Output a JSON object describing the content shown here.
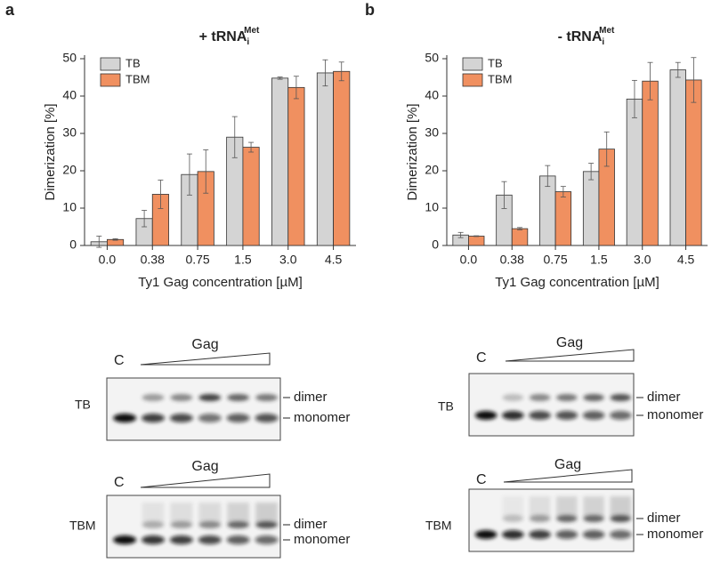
{
  "panel_labels": [
    "a",
    "b"
  ],
  "chart_data": [
    {
      "type": "bar",
      "title": "+ tRNA",
      "title_sub": "i",
      "title_sup": "Met",
      "xlabel": "Ty1 Gag concentration [µM]",
      "ylabel": "Dimerization [%]",
      "categories": [
        "0.0",
        "0.38",
        "0.75",
        "1.5",
        "3.0",
        "4.5"
      ],
      "series": [
        {
          "name": "TB",
          "color": "#d4d4d4",
          "values": [
            1.0,
            7.2,
            19.0,
            29.0,
            44.8,
            46.2
          ],
          "errors": [
            1.5,
            2.2,
            5.5,
            5.5,
            0.3,
            3.5
          ]
        },
        {
          "name": "TBM",
          "color": "#f09060",
          "values": [
            1.6,
            13.7,
            19.8,
            26.3,
            42.3,
            46.6
          ],
          "errors": [
            0.2,
            3.8,
            5.8,
            1.3,
            3.0,
            2.5
          ]
        }
      ],
      "ylim": [
        0,
        50
      ],
      "yticks": [
        0,
        10,
        20,
        30,
        40,
        50
      ],
      "legend": "upper left"
    },
    {
      "type": "bar",
      "title": "- tRNA",
      "title_sub": "i",
      "title_sup": "Met",
      "xlabel": "Ty1 Gag concentration [µM]",
      "ylabel": "Dimerization [%]",
      "categories": [
        "0.0",
        "0.38",
        "0.75",
        "1.5",
        "3.0",
        "4.5"
      ],
      "series": [
        {
          "name": "TB",
          "color": "#d4d4d4",
          "values": [
            2.8,
            13.5,
            18.6,
            19.8,
            39.2,
            47.0
          ],
          "errors": [
            0.7,
            3.6,
            2.8,
            2.2,
            5.0,
            2.0
          ]
        },
        {
          "name": "TBM",
          "color": "#f09060",
          "values": [
            2.5,
            4.5,
            14.4,
            25.8,
            44.0,
            44.3
          ],
          "errors": [
            0.1,
            0.3,
            1.4,
            4.6,
            5.0,
            6.0
          ]
        }
      ],
      "ylim": [
        0,
        50
      ],
      "yticks": [
        0,
        10,
        20,
        30,
        40,
        50
      ],
      "legend": "upper left"
    }
  ],
  "gels": [
    {
      "control": "C",
      "gradient": "Gag",
      "buffer": "TB",
      "bands": [
        "dimer",
        "monomer"
      ]
    },
    {
      "control": "C",
      "gradient": "Gag",
      "buffer": "TBM",
      "bands": [
        "dimer",
        "monomer"
      ]
    },
    {
      "control": "C",
      "gradient": "Gag",
      "buffer": "TB",
      "bands": [
        "dimer",
        "monomer"
      ]
    },
    {
      "control": "C",
      "gradient": "Gag",
      "buffer": "TBM",
      "bands": [
        "dimer",
        "monomer"
      ]
    }
  ]
}
